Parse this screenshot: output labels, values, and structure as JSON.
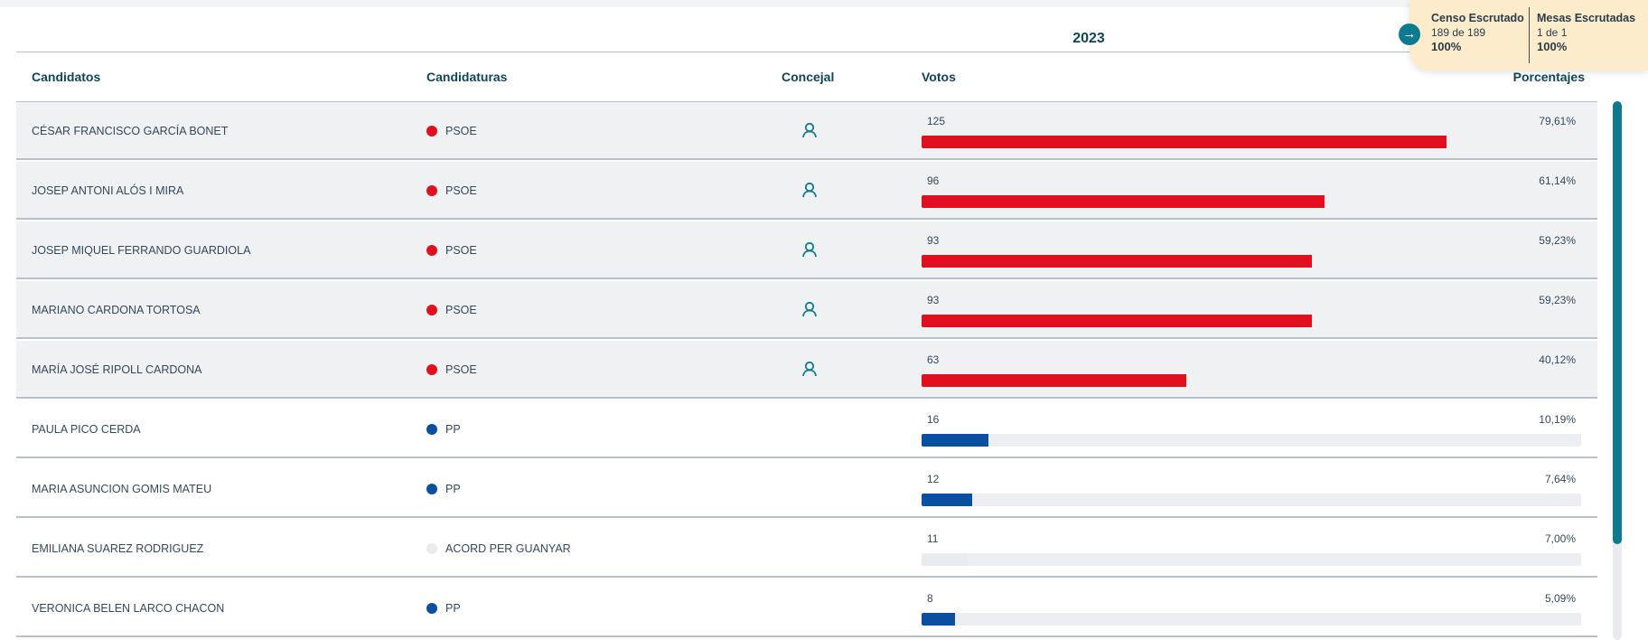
{
  "year": "2023",
  "headers": {
    "candidatos": "Candidatos",
    "candidaturas": "Candidaturas",
    "concejal": "Concejal",
    "votos": "Votos",
    "porcentajes": "Porcentajes"
  },
  "censo": {
    "escrutado_title": "Censo Escrutado",
    "escrutado_count": "189 de 189",
    "escrutado_pct": "100%",
    "mesas_title": "Mesas Escrutadas",
    "mesas_count": "1 de 1",
    "mesas_pct": "100%"
  },
  "colors": {
    "PSOE": "#e0101f",
    "PP": "#0b4fa0",
    "ACORD": "#e9ebee",
    "accent": "#0e7a90"
  },
  "icons": {
    "concejal": "user-icon",
    "arrow": "arrow-right-icon"
  },
  "rows": [
    {
      "name": "CÉSAR FRANCISCO GARCÍA BONET",
      "party": "PSOE",
      "votes": "125",
      "pct": "79,61%",
      "fraction": 0.7961,
      "elected": true
    },
    {
      "name": "JOSEP ANTONI ALÓS I MIRA",
      "party": "PSOE",
      "votes": "96",
      "pct": "61,14%",
      "fraction": 0.6114,
      "elected": true
    },
    {
      "name": "JOSEP MIQUEL FERRANDO GUARDIOLA",
      "party": "PSOE",
      "votes": "93",
      "pct": "59,23%",
      "fraction": 0.5923,
      "elected": true
    },
    {
      "name": "MARIANO CARDONA TORTOSA",
      "party": "PSOE",
      "votes": "93",
      "pct": "59,23%",
      "fraction": 0.5923,
      "elected": true
    },
    {
      "name": "MARÍA JOSÉ RIPOLL CARDONA",
      "party": "PSOE",
      "votes": "63",
      "pct": "40,12%",
      "fraction": 0.4012,
      "elected": true
    },
    {
      "name": "PAULA PICO CERDA",
      "party": "PP",
      "votes": "16",
      "pct": "10,19%",
      "fraction": 0.1019,
      "elected": false
    },
    {
      "name": "MARIA ASUNCION GOMIS MATEU",
      "party": "PP",
      "votes": "12",
      "pct": "7,64%",
      "fraction": 0.0764,
      "elected": false
    },
    {
      "name": "EMILIANA SUAREZ RODRIGUEZ",
      "party": "ACORD PER GUANYAR",
      "votes": "11",
      "pct": "7,00%",
      "fraction": 0.07,
      "elected": false
    },
    {
      "name": "VERONICA BELEN LARCO CHACON",
      "party": "PP",
      "votes": "8",
      "pct": "5,09%",
      "fraction": 0.0509,
      "elected": false
    }
  ]
}
